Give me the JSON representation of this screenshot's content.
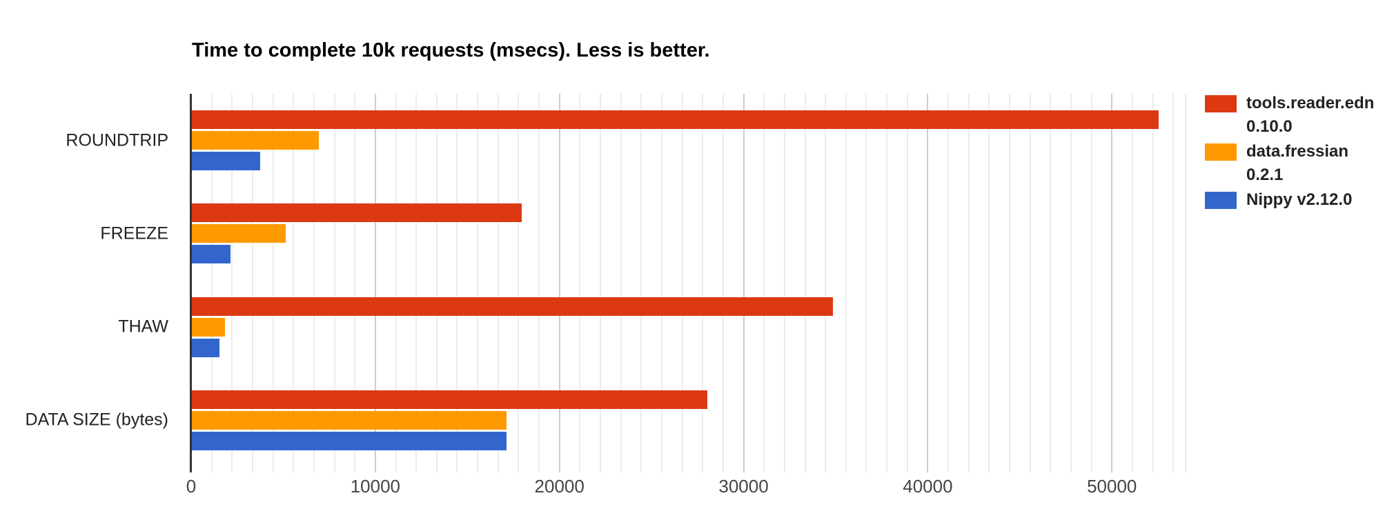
{
  "chart_data": {
    "type": "bar",
    "orientation": "horizontal",
    "title": "Time to complete 10k requests (msecs). Less is better.",
    "categories": [
      "ROUNDTRIP",
      "FREEZE",
      "THAW",
      "DATA SIZE (bytes)"
    ],
    "series": [
      {
        "name": "tools.reader.edn 0.10.0",
        "color": "#dc3912",
        "values": [
          52500,
          17900,
          34800,
          28000
        ]
      },
      {
        "name": "data.fressian 0.2.1",
        "color": "#ff9900",
        "values": [
          6900,
          5100,
          1800,
          17100
        ]
      },
      {
        "name": "Nippy v2.12.0",
        "color": "#3366cc",
        "values": [
          3700,
          2100,
          1500,
          17100
        ]
      }
    ],
    "x_axis": {
      "min": 0,
      "max": 54000,
      "major_tick_interval": 10000,
      "minor_divisions_per_major": 9,
      "tick_values": [
        0,
        10000,
        20000,
        30000,
        40000,
        50000
      ],
      "tick_labels": [
        "0",
        "10000",
        "20000",
        "30000",
        "40000",
        "50000"
      ]
    },
    "legend_position": "right",
    "grid": true,
    "background_color": "#ffffff",
    "gridline_minor_color": "#ebebeb",
    "gridline_major_color": "#cccccc",
    "axis_line_color": "#333333"
  }
}
